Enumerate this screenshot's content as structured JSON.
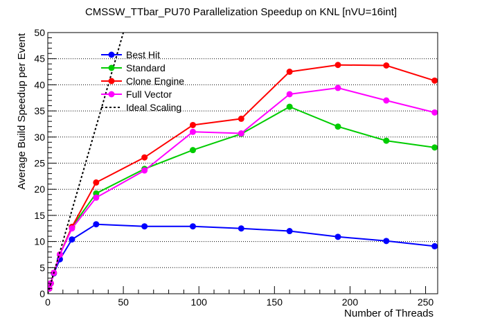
{
  "chart_data": {
    "type": "line",
    "title": "CMSSW_TTbar_PU70 Parallelization Speedup on KNL [nVU=16int]",
    "xlabel": "Number of Threads",
    "ylabel": "Average Build Speedup per Event",
    "xlim": [
      0,
      258
    ],
    "ylim": [
      0,
      50
    ],
    "xticks": [
      "0",
      "50",
      "100",
      "150",
      "200",
      "250"
    ],
    "yticks": [
      "0",
      "5",
      "10",
      "15",
      "20",
      "25",
      "30",
      "35",
      "40",
      "45",
      "50"
    ],
    "grid": "horizontal dotted",
    "legend_position": "top-left",
    "series": [
      {
        "name": "Best Hit",
        "color": "#0000ff",
        "x": [
          1,
          2,
          4,
          8,
          16,
          32,
          64,
          96,
          128,
          160,
          192,
          224,
          256
        ],
        "y": [
          1.0,
          2.0,
          3.9,
          6.6,
          10.4,
          13.3,
          12.9,
          12.9,
          12.5,
          12.0,
          10.9,
          10.1,
          9.1
        ]
      },
      {
        "name": "Standard",
        "color": "#00cc00",
        "x": [
          1,
          2,
          4,
          8,
          16,
          32,
          64,
          96,
          128,
          160,
          192,
          224,
          256
        ],
        "y": [
          1.0,
          2.0,
          4.0,
          7.5,
          12.8,
          19.2,
          23.9,
          27.5,
          30.6,
          35.8,
          32.0,
          29.3,
          28.0
        ]
      },
      {
        "name": "Clone Engine",
        "color": "#ff0000",
        "x": [
          1,
          2,
          4,
          8,
          16,
          32,
          64,
          96,
          128,
          160,
          192,
          224,
          256
        ],
        "y": [
          1.0,
          2.0,
          4.0,
          7.5,
          12.8,
          21.3,
          26.1,
          32.3,
          33.5,
          42.5,
          43.8,
          43.7,
          40.8
        ]
      },
      {
        "name": "Full Vector",
        "color": "#ff00ff",
        "x": [
          1,
          2,
          4,
          8,
          16,
          32,
          64,
          96,
          128,
          160,
          192,
          224,
          256
        ],
        "y": [
          1.0,
          2.0,
          4.0,
          7.5,
          12.5,
          18.4,
          23.6,
          31.0,
          30.7,
          38.2,
          39.4,
          37.0,
          34.7
        ]
      },
      {
        "name": "Ideal Scaling",
        "color": "#000000",
        "dashed": true,
        "x": [
          0,
          50
        ],
        "y": [
          0,
          50
        ]
      }
    ]
  }
}
